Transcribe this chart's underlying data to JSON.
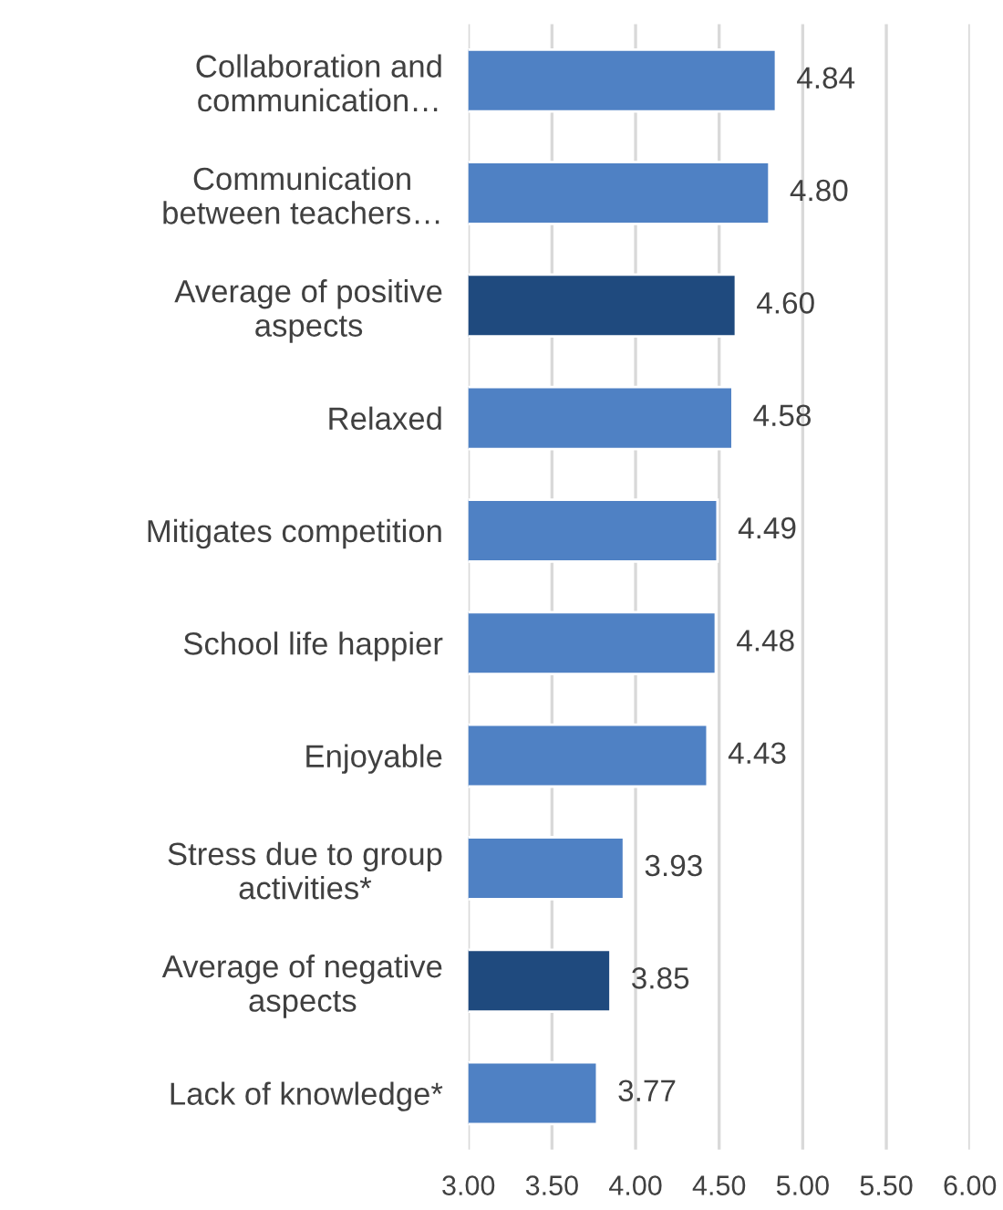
{
  "chart_data": {
    "type": "bar",
    "orientation": "horizontal",
    "categories": [
      "Collaboration and\ncommunication…",
      "Communication\nbetween teachers…",
      "Average of positive\naspects",
      "Relaxed",
      "Mitigates competition",
      "School life happier",
      "Enjoyable",
      "Stress due to group\nactivities*",
      "Average of negative\naspects",
      "Lack of knowledge*"
    ],
    "values": [
      4.84,
      4.8,
      4.6,
      4.58,
      4.49,
      4.48,
      4.43,
      3.93,
      3.85,
      3.77
    ],
    "colors": [
      "#4f81c4",
      "#4f81c4",
      "#1f4a7e",
      "#4f81c4",
      "#4f81c4",
      "#4f81c4",
      "#4f81c4",
      "#4f81c4",
      "#1f4a7e",
      "#4f81c4"
    ],
    "value_labels": [
      "4.84",
      "4.80",
      "4.60",
      "4.58",
      "4.49",
      "4.48",
      "4.43",
      "3.93",
      "3.85",
      "3.77"
    ],
    "xlim": [
      3,
      6
    ],
    "xticks": [
      {
        "value": 3,
        "label": "3.00"
      },
      {
        "value": 3.5,
        "label": "3.50"
      },
      {
        "value": 4,
        "label": "4.00"
      },
      {
        "value": 4.5,
        "label": "4.50"
      },
      {
        "value": 5,
        "label": "5.00"
      },
      {
        "value": 5.5,
        "label": "5.50"
      },
      {
        "value": 6,
        "label": "6.00"
      }
    ],
    "grid": "x",
    "legend": false
  }
}
